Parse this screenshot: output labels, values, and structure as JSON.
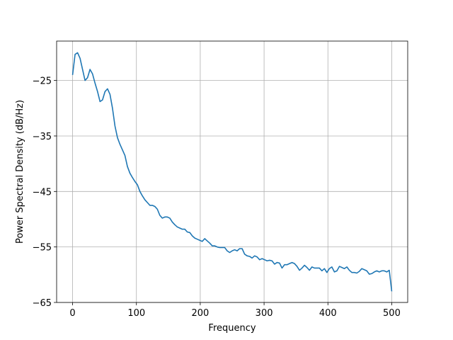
{
  "chart_data": {
    "type": "line",
    "title": "",
    "xlabel": "Frequency",
    "ylabel": "Power Spectral Density (dB/Hz)",
    "xlim": [
      -25,
      525
    ],
    "ylim": [
      -65,
      -17.9
    ],
    "xticks": [
      0,
      100,
      200,
      300,
      400,
      500
    ],
    "yticks": [
      -65,
      -55,
      -45,
      -35,
      -25
    ],
    "grid": true,
    "legend": "none",
    "series": [
      {
        "color": "#1f77b4",
        "x": [
          0,
          3.9,
          7.8,
          11.7,
          15.6,
          19.5,
          23.4,
          27.3,
          31.2,
          35.2,
          39.1,
          43.0,
          46.9,
          50.8,
          54.7,
          58.6,
          62.5,
          66.4,
          70.3,
          74.2,
          78.1,
          82.0,
          85.9,
          89.8,
          93.8,
          97.7,
          101.6,
          105.5,
          109.4,
          113.3,
          117.2,
          121.1,
          125.0,
          128.9,
          132.8,
          136.7,
          140.6,
          144.5,
          148.4,
          152.3,
          156.2,
          160.2,
          164.1,
          168.0,
          171.9,
          175.8,
          179.7,
          183.6,
          187.5,
          191.4,
          195.3,
          199.2,
          203.1,
          207.0,
          210.9,
          214.8,
          218.8,
          222.7,
          226.6,
          230.5,
          234.4,
          238.3,
          242.2,
          246.1,
          250.0,
          253.9,
          257.8,
          261.7,
          265.6,
          269.5,
          273.4,
          277.3,
          281.2,
          285.2,
          289.1,
          293.0,
          296.9,
          300.8,
          304.7,
          308.6,
          312.5,
          316.4,
          320.3,
          324.2,
          328.1,
          332.0,
          335.9,
          339.8,
          343.8,
          347.7,
          351.6,
          355.5,
          359.4,
          363.3,
          367.2,
          371.1,
          375.0,
          378.9,
          382.8,
          386.7,
          390.6,
          394.5,
          398.4,
          402.3,
          406.2,
          410.2,
          414.1,
          418.0,
          421.9,
          425.8,
          429.7,
          433.6,
          437.5,
          441.4,
          445.3,
          449.2,
          453.1,
          457.0,
          460.9,
          464.8,
          468.8,
          472.7,
          476.6,
          480.5,
          484.4,
          488.3,
          492.2,
          496.1,
          500.0
        ],
        "y": [
          -24.0,
          -20.3,
          -20.0,
          -21.0,
          -23.0,
          -25.0,
          -24.5,
          -23.0,
          -23.8,
          -25.5,
          -27.0,
          -28.8,
          -28.5,
          -27.0,
          -26.5,
          -27.5,
          -30.0,
          -33.2,
          -35.3,
          -36.5,
          -37.5,
          -38.5,
          -40.5,
          -41.7,
          -42.5,
          -43.2,
          -43.8,
          -45.0,
          -45.8,
          -46.5,
          -47.0,
          -47.5,
          -47.5,
          -47.7,
          -48.2,
          -49.3,
          -49.8,
          -49.6,
          -49.6,
          -49.8,
          -50.5,
          -51.0,
          -51.4,
          -51.6,
          -51.8,
          -51.8,
          -52.3,
          -52.4,
          -53.0,
          -53.4,
          -53.6,
          -53.8,
          -54.0,
          -53.5,
          -53.9,
          -54.3,
          -54.8,
          -54.8,
          -55.0,
          -55.1,
          -55.1,
          -55.1,
          -55.7,
          -56.0,
          -55.7,
          -55.5,
          -55.7,
          -55.3,
          -55.3,
          -56.3,
          -56.6,
          -56.7,
          -57.0,
          -56.6,
          -56.8,
          -57.3,
          -57.1,
          -57.3,
          -57.5,
          -57.4,
          -57.5,
          -58.1,
          -57.8,
          -57.9,
          -58.8,
          -58.2,
          -58.2,
          -58.0,
          -57.8,
          -58.0,
          -58.5,
          -59.2,
          -58.8,
          -58.3,
          -58.7,
          -59.2,
          -58.6,
          -58.8,
          -58.8,
          -58.8,
          -59.3,
          -58.9,
          -59.6,
          -58.9,
          -58.6,
          -59.5,
          -59.3,
          -58.5,
          -58.7,
          -58.9,
          -58.6,
          -59.2,
          -59.6,
          -59.6,
          -59.7,
          -59.4,
          -58.9,
          -59.1,
          -59.3,
          -59.9,
          -59.8,
          -59.5,
          -59.3,
          -59.5,
          -59.3,
          -59.3,
          -59.5,
          -59.2,
          -63.0
        ]
      }
    ]
  }
}
